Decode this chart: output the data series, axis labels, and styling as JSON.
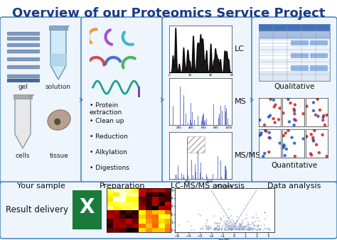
{
  "title": "Overview of our Proteomics Service Project",
  "title_color": "#1a3a8a",
  "title_fontsize": 13,
  "bg_color": "#ffffff",
  "box_edge_color": "#4a8abf",
  "arrow_color": "#4a8abf",
  "section_labels": [
    "Your sample",
    "Preparation",
    "LC-MS/MS analysis",
    "Data analysis"
  ],
  "prep_bullets": [
    "Protein\nextraction",
    "Clean up",
    "Reduction",
    "Alkylation",
    "Digestions"
  ],
  "lc_ms_labels": [
    "LC",
    "MS",
    "MS/MS"
  ],
  "result_delivery_label": "Result delivery"
}
